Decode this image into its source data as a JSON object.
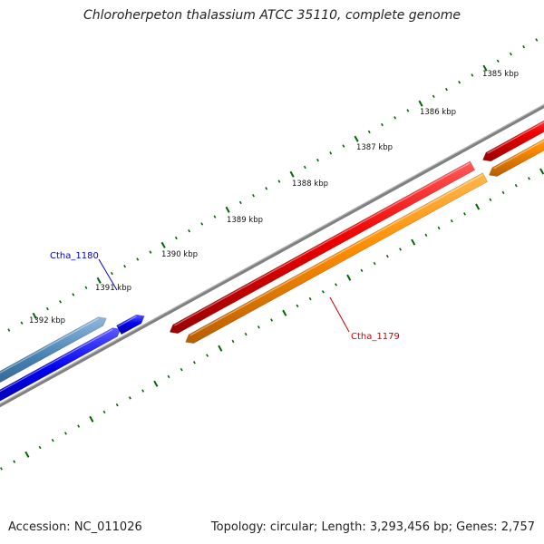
{
  "title": "Chloroherpeton thalassium ATCC 35110, complete genome",
  "accession": "Accession: NC_011026",
  "summary": "Topology: circular; Length: 3,293,456 bp; Genes: 2,757",
  "scale_labels": [
    "1385 kbp",
    "1386 kbp",
    "1387 kbp",
    "1388 kbp",
    "1389 kbp",
    "1390 kbp",
    "1391 kbp",
    "1392 kbp"
  ],
  "genes": [
    {
      "name": "Ctha_1180",
      "color": "#0000cc"
    },
    {
      "name": "Ctha_1179",
      "color": "#cc0000"
    }
  ],
  "colors": {
    "backbone": "#808080",
    "tick": "#006600",
    "gene_red": "#ee0000",
    "gene_orange": "#ff8c00",
    "gene_blue": "#0000ee",
    "gene_steel": "#4682b4"
  }
}
